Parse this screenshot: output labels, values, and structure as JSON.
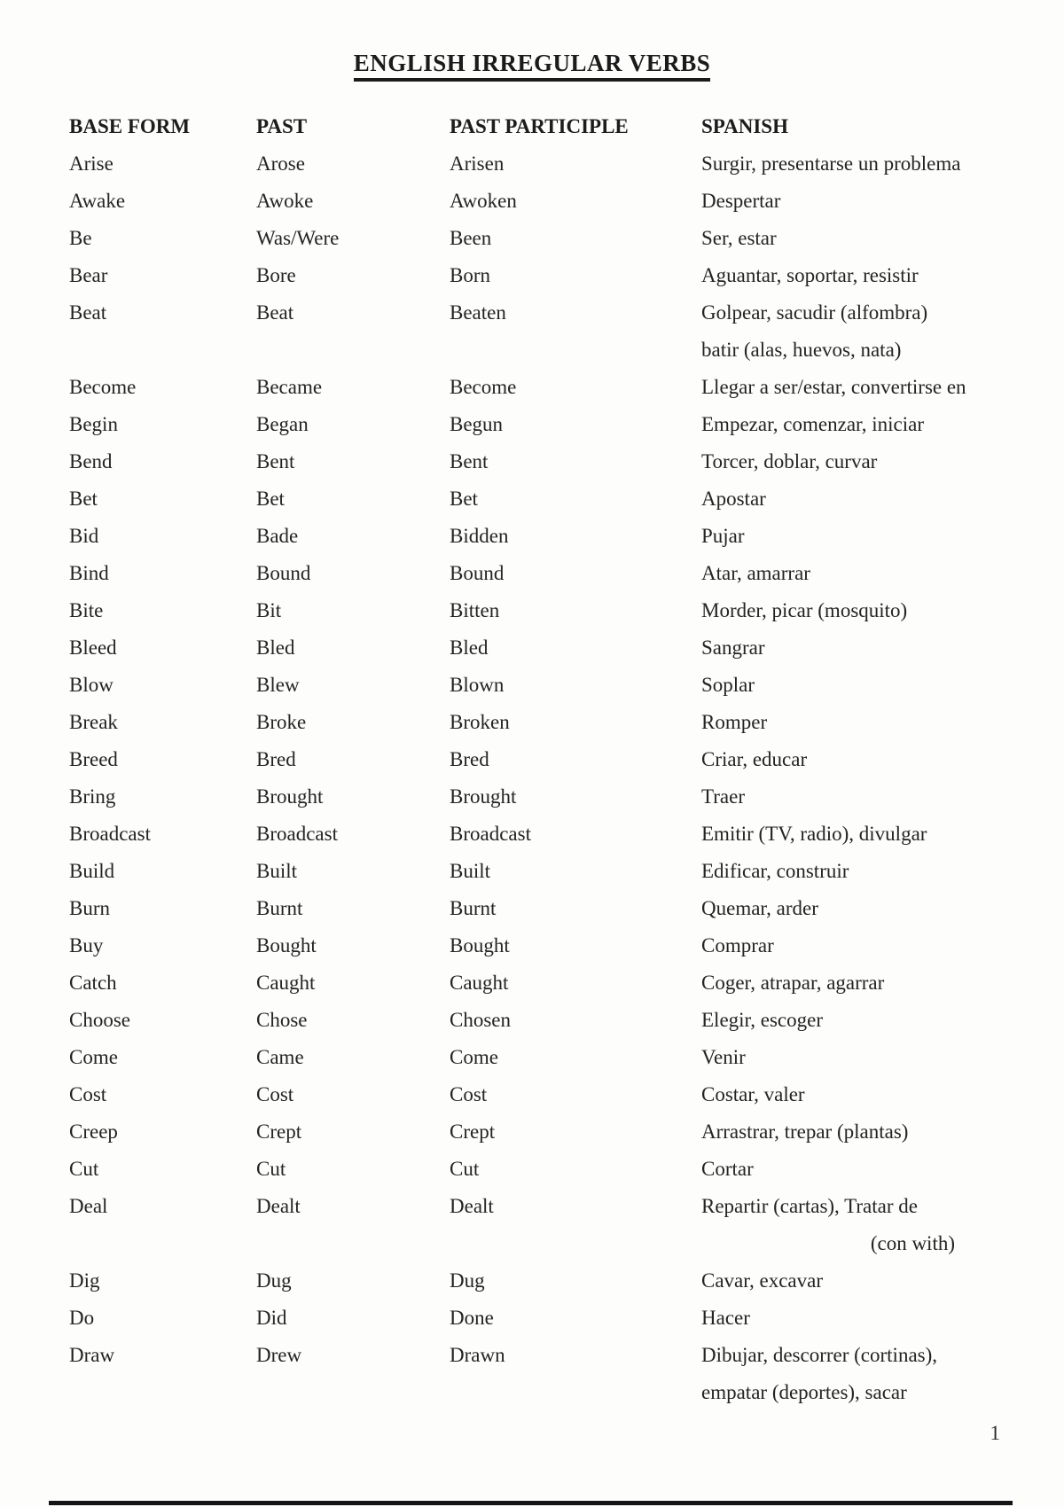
{
  "page": {
    "title": "ENGLISH IRREGULAR VERBS",
    "page_number": "1",
    "colors": {
      "background": "#fdfdfc",
      "text": "#242424",
      "title": "#1b1b1b",
      "footer_bar": "#141418"
    }
  },
  "table": {
    "headers": {
      "base": "BASE FORM",
      "past": "PAST",
      "participle": "PAST PARTICIPLE",
      "spanish": "SPANISH"
    },
    "rows": [
      {
        "base": "Arise",
        "past": "Arose",
        "participle": "Arisen",
        "spanish": [
          "Surgir, presentarse un problema"
        ]
      },
      {
        "base": "Awake",
        "past": "Awoke",
        "participle": "Awoken",
        "spanish": [
          "Despertar"
        ]
      },
      {
        "base": "Be",
        "past": "Was/Were",
        "participle": "Been",
        "spanish": [
          "Ser, estar"
        ]
      },
      {
        "base": "Bear",
        "past": "Bore",
        "participle": "Born",
        "spanish": [
          "Aguantar, soportar, resistir"
        ]
      },
      {
        "base": "Beat",
        "past": "Beat",
        "participle": "Beaten",
        "spanish": [
          "Golpear, sacudir (alfombra)",
          "batir (alas, huevos, nata)"
        ]
      },
      {
        "base": "Become",
        "past": "Became",
        "participle": "Become",
        "spanish": [
          "Llegar a ser/estar, convertirse en"
        ]
      },
      {
        "base": "Begin",
        "past": "Began",
        "participle": "Begun",
        "spanish": [
          "Empezar, comenzar, iniciar"
        ]
      },
      {
        "base": "Bend",
        "past": "Bent",
        "participle": "Bent",
        "spanish": [
          "Torcer, doblar, curvar"
        ]
      },
      {
        "base": "Bet",
        "past": "Bet",
        "participle": "Bet",
        "spanish": [
          "Apostar"
        ]
      },
      {
        "base": "Bid",
        "past": "Bade",
        "participle": "Bidden",
        "spanish": [
          "Pujar"
        ]
      },
      {
        "base": "Bind",
        "past": "Bound",
        "participle": "Bound",
        "spanish": [
          "Atar, amarrar"
        ]
      },
      {
        "base": "Bite",
        "past": "Bit",
        "participle": "Bitten",
        "spanish": [
          "Morder, picar (mosquito)"
        ]
      },
      {
        "base": "Bleed",
        "past": "Bled",
        "participle": "Bled",
        "spanish": [
          "Sangrar"
        ]
      },
      {
        "base": "Blow",
        "past": "Blew",
        "participle": "Blown",
        "spanish": [
          "Soplar"
        ]
      },
      {
        "base": "Break",
        "past": "Broke",
        "participle": "Broken",
        "spanish": [
          "Romper"
        ]
      },
      {
        "base": "Breed",
        "past": "Bred",
        "participle": "Bred",
        "spanish": [
          "Criar, educar"
        ]
      },
      {
        "base": "Bring",
        "past": "Brought",
        "participle": "Brought",
        "spanish": [
          "Traer"
        ]
      },
      {
        "base": "Broadcast",
        "past": "Broadcast",
        "participle": "Broadcast",
        "spanish": [
          "Emitir (TV, radio), divulgar"
        ]
      },
      {
        "base": "Build",
        "past": "Built",
        "participle": "Built",
        "spanish": [
          "Edificar, construir"
        ]
      },
      {
        "base": "Burn",
        "past": "Burnt",
        "participle": "Burnt",
        "spanish": [
          "Quemar, arder"
        ]
      },
      {
        "base": "Buy",
        "past": "Bought",
        "participle": "Bought",
        "spanish": [
          "Comprar"
        ]
      },
      {
        "base": "Catch",
        "past": "Caught",
        "participle": "Caught",
        "spanish": [
          "Coger, atrapar, agarrar"
        ]
      },
      {
        "base": "Choose",
        "past": "Chose",
        "participle": "Chosen",
        "spanish": [
          "Elegir, escoger"
        ]
      },
      {
        "base": "Come",
        "past": "Came",
        "participle": "Come",
        "spanish": [
          "Venir"
        ]
      },
      {
        "base": "Cost",
        "past": "Cost",
        "participle": "Cost",
        "spanish": [
          "Costar, valer"
        ]
      },
      {
        "base": "Creep",
        "past": "Crept",
        "participle": "Crept",
        "spanish": [
          "Arrastrar, trepar (plantas)"
        ]
      },
      {
        "base": "Cut",
        "past": "Cut",
        "participle": "Cut",
        "spanish": [
          "Cortar"
        ]
      },
      {
        "base": "Deal",
        "past": "Dealt",
        "participle": "Dealt",
        "spanish": [
          "Repartir (cartas), Tratar de",
          "(con with)"
        ],
        "spanish_wrap_align": "right"
      },
      {
        "base": "Dig",
        "past": "Dug",
        "participle": "Dug",
        "spanish": [
          "Cavar, excavar"
        ]
      },
      {
        "base": "Do",
        "past": "Did",
        "participle": "Done",
        "spanish": [
          "Hacer"
        ]
      },
      {
        "base": "Draw",
        "past": "Drew",
        "participle": "Drawn",
        "spanish": [
          "Dibujar, descorrer (cortinas),",
          "empatar (deportes), sacar"
        ]
      }
    ]
  }
}
